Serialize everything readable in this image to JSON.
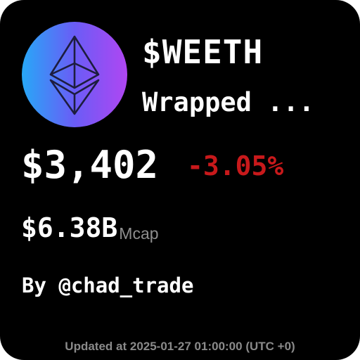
{
  "token": {
    "symbol": "$WEETH",
    "name": "Wrapped ...",
    "logo_icon": "eth-diamond-icon"
  },
  "market": {
    "price": "$3,402",
    "change": "-3.05%",
    "market_cap": "$6.38B",
    "market_cap_label": "Mcap"
  },
  "author": "By @chad_trade",
  "footer": {
    "updated": "Updated at 2025-01-27 01:00:00 (UTC +0)"
  },
  "colors": {
    "background": "#000000",
    "text": "#ffffff",
    "negative": "#c8191b",
    "muted": "#8e8e8e",
    "logo_gradient": [
      "#27a8f7",
      "#6a5cf6",
      "#b046f2"
    ],
    "logo_stroke": "#1d1d3f"
  }
}
